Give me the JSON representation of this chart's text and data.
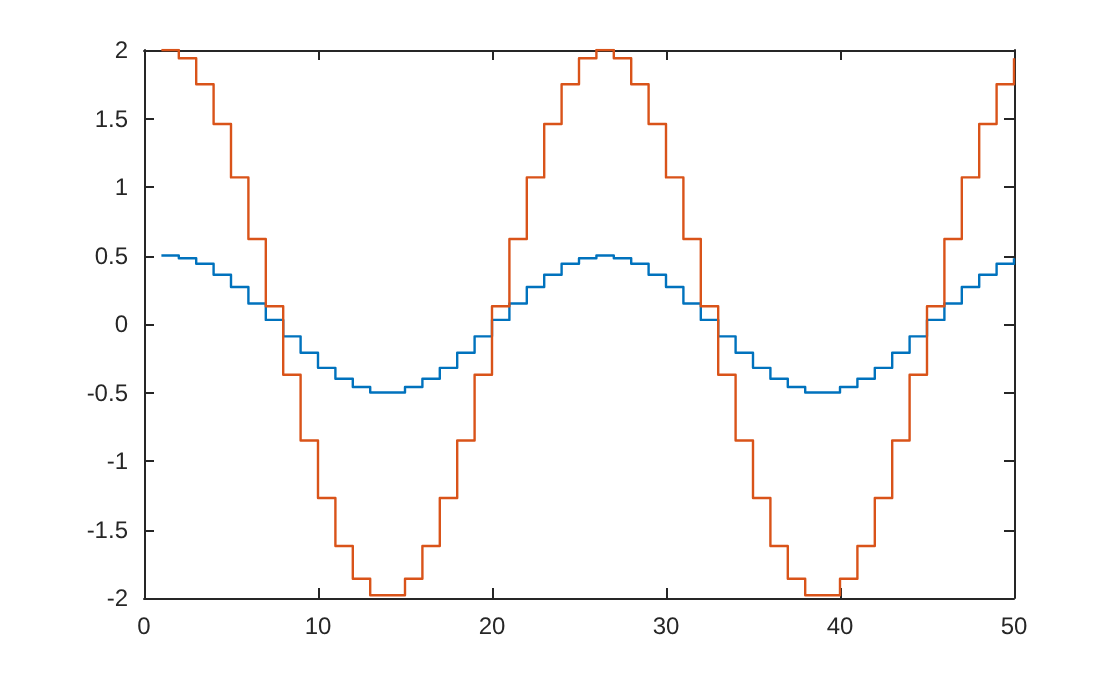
{
  "chart_data": {
    "type": "step",
    "x": [
      1,
      2,
      3,
      4,
      5,
      6,
      7,
      8,
      9,
      10,
      11,
      12,
      13,
      14,
      15,
      16,
      17,
      18,
      19,
      20,
      21,
      22,
      23,
      24,
      25,
      26,
      27,
      28,
      29,
      30,
      31,
      32,
      33,
      34,
      35,
      36,
      37,
      38,
      39,
      40,
      41,
      42,
      43,
      44,
      45,
      46,
      47,
      48,
      49,
      50
    ],
    "series": [
      {
        "color": "#0072bd",
        "values": [
          0.5,
          0.48,
          0.44,
          0.36,
          0.27,
          0.15,
          0.03,
          -0.09,
          -0.21,
          -0.32,
          -0.4,
          -0.46,
          -0.5,
          -0.5,
          -0.46,
          -0.4,
          -0.32,
          -0.21,
          -0.09,
          0.03,
          0.15,
          0.27,
          0.36,
          0.44,
          0.48,
          0.5,
          0.48,
          0.44,
          0.36,
          0.27,
          0.15,
          0.03,
          -0.09,
          -0.21,
          -0.32,
          -0.4,
          -0.46,
          -0.5,
          -0.5,
          -0.46,
          -0.4,
          -0.32,
          -0.21,
          -0.09,
          0.03,
          0.15,
          0.27,
          0.36,
          0.44,
          0.48
        ]
      },
      {
        "color": "#d95319",
        "values": [
          2,
          1.94,
          1.75,
          1.46,
          1.07,
          0.62,
          0.13,
          -0.37,
          -0.85,
          -1.27,
          -1.62,
          -1.86,
          -1.98,
          -1.98,
          -1.86,
          -1.62,
          -1.27,
          -0.85,
          -0.37,
          0.13,
          0.62,
          1.07,
          1.46,
          1.75,
          1.94,
          2,
          1.94,
          1.75,
          1.46,
          1.07,
          0.62,
          0.13,
          -0.37,
          -0.85,
          -1.27,
          -1.62,
          -1.86,
          -1.98,
          -1.98,
          -1.86,
          -1.62,
          -1.27,
          -0.85,
          -0.37,
          0.13,
          0.62,
          1.07,
          1.46,
          1.75,
          1.94
        ]
      }
    ],
    "xlim": [
      0,
      50
    ],
    "xticks": [
      0,
      10,
      20,
      30,
      40,
      50
    ],
    "ylim": [
      -2,
      2
    ],
    "yticks": [
      -2,
      -1.5,
      -1,
      -0.5,
      0,
      0.5,
      1,
      1.5,
      2
    ],
    "grid": false,
    "marker": "none",
    "line_style": "solid"
  }
}
